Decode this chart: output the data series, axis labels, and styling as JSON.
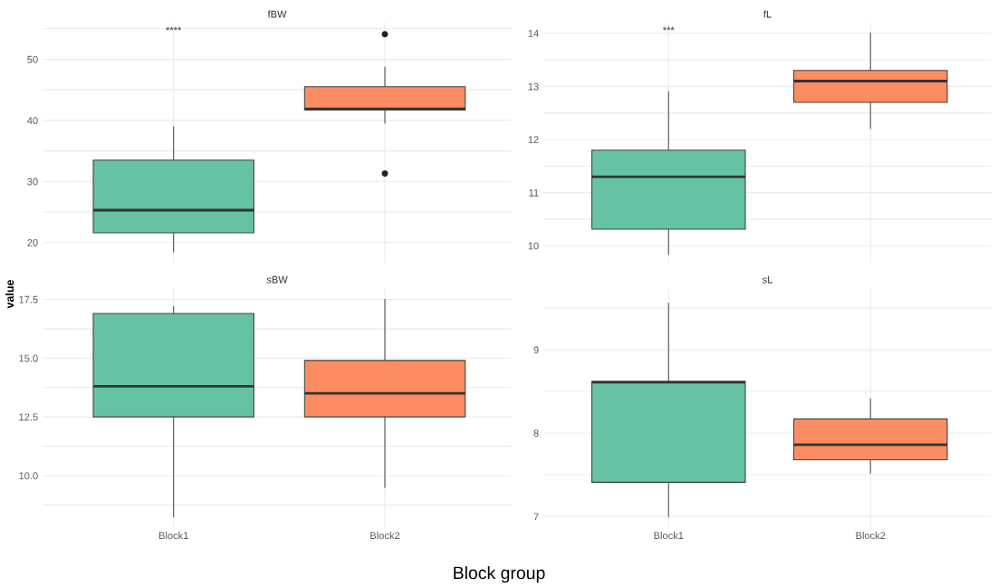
{
  "chart_data": [
    {
      "type": "box",
      "title": "fBW",
      "ylabel": "value",
      "colors": [
        "#66c2a5",
        "#fc8d62"
      ],
      "boxes": [
        {
          "low": 18.5,
          "q1": 21.6,
          "median": 25.3,
          "q3": 33.5,
          "high": 38.9
        },
        {
          "low": 39.6,
          "q1": 41.7,
          "median": 41.9,
          "q3": 45.5,
          "high": 48.7,
          "outliers": [
            54.1,
            31.3
          ]
        }
      ],
      "ylim": [
        16.7,
        56
      ],
      "yticks": [
        20,
        {
          "value": 25,
          "label": null
        },
        30,
        {
          "value": 35,
          "label": null
        },
        40,
        {
          "value": 45,
          "label": null
        },
        50,
        {
          "value": 55,
          "label": null
        }
      ],
      "annotations": [
        "****"
      ],
      "grid": true,
      "tick_labels": "y"
    },
    {
      "type": "box",
      "title": "fL",
      "colors": [
        "#66c2a5",
        "#fc8d62"
      ],
      "boxes": [
        {
          "low": 9.84,
          "q1": 10.31,
          "median": 11.3,
          "q3": 11.8,
          "high": 12.9
        },
        {
          "low": 12.21,
          "q1": 12.7,
          "median": 13.1,
          "q3": 13.3,
          "high": 14.0
        }
      ],
      "ylim": [
        9.68,
        14.2
      ],
      "yticks": [
        10,
        {
          "value": 10.5,
          "label": null
        },
        11,
        {
          "value": 11.5,
          "label": null
        },
        12,
        {
          "value": 12.5,
          "label": null
        },
        13,
        {
          "value": 13.5,
          "label": null
        },
        14
      ],
      "annotations": [
        "***"
      ],
      "grid": true,
      "tick_labels": "y"
    },
    {
      "type": "box",
      "title": "sBW",
      "xlabel": "Block group",
      "categories": [
        "Block1",
        "Block2"
      ],
      "colors": [
        "#66c2a5",
        "#fc8d62"
      ],
      "boxes": [
        {
          "low": 8.25,
          "q1": 12.5,
          "median": 13.8,
          "q3": 16.9,
          "high": 17.2
        },
        {
          "low": 9.5,
          "q1": 12.5,
          "median": 13.5,
          "q3": 14.9,
          "high": 17.5
        }
      ],
      "ylim": [
        7.8,
        17.98
      ],
      "yticks": [
        {
          "value": 8.75,
          "label": null
        },
        {
          "value": 10,
          "label": "10.0"
        },
        {
          "value": 11.25,
          "label": null
        },
        12.5,
        {
          "value": 13.75,
          "label": null
        },
        {
          "value": 15,
          "label": "15.0"
        },
        {
          "value": 16.25,
          "label": null
        },
        17.5
      ],
      "grid": true
    },
    {
      "type": "box",
      "title": "sL",
      "categories": [
        "Block1",
        "Block2"
      ],
      "colors": [
        "#66c2a5",
        "#fc8d62"
      ],
      "boxes": [
        {
          "low": 7.0,
          "q1": 7.41,
          "median": 8.61,
          "q3": 8.62,
          "high": 9.56
        },
        {
          "low": 7.52,
          "q1": 7.68,
          "median": 7.86,
          "q3": 8.17,
          "high": 8.41
        }
      ],
      "ylim": [
        6.87,
        9.74
      ],
      "yticks": [
        7,
        {
          "value": 7.5,
          "label": null
        },
        8,
        {
          "value": 8.5,
          "label": null
        },
        9,
        {
          "value": 9.5,
          "label": null
        }
      ],
      "grid": true
    }
  ]
}
